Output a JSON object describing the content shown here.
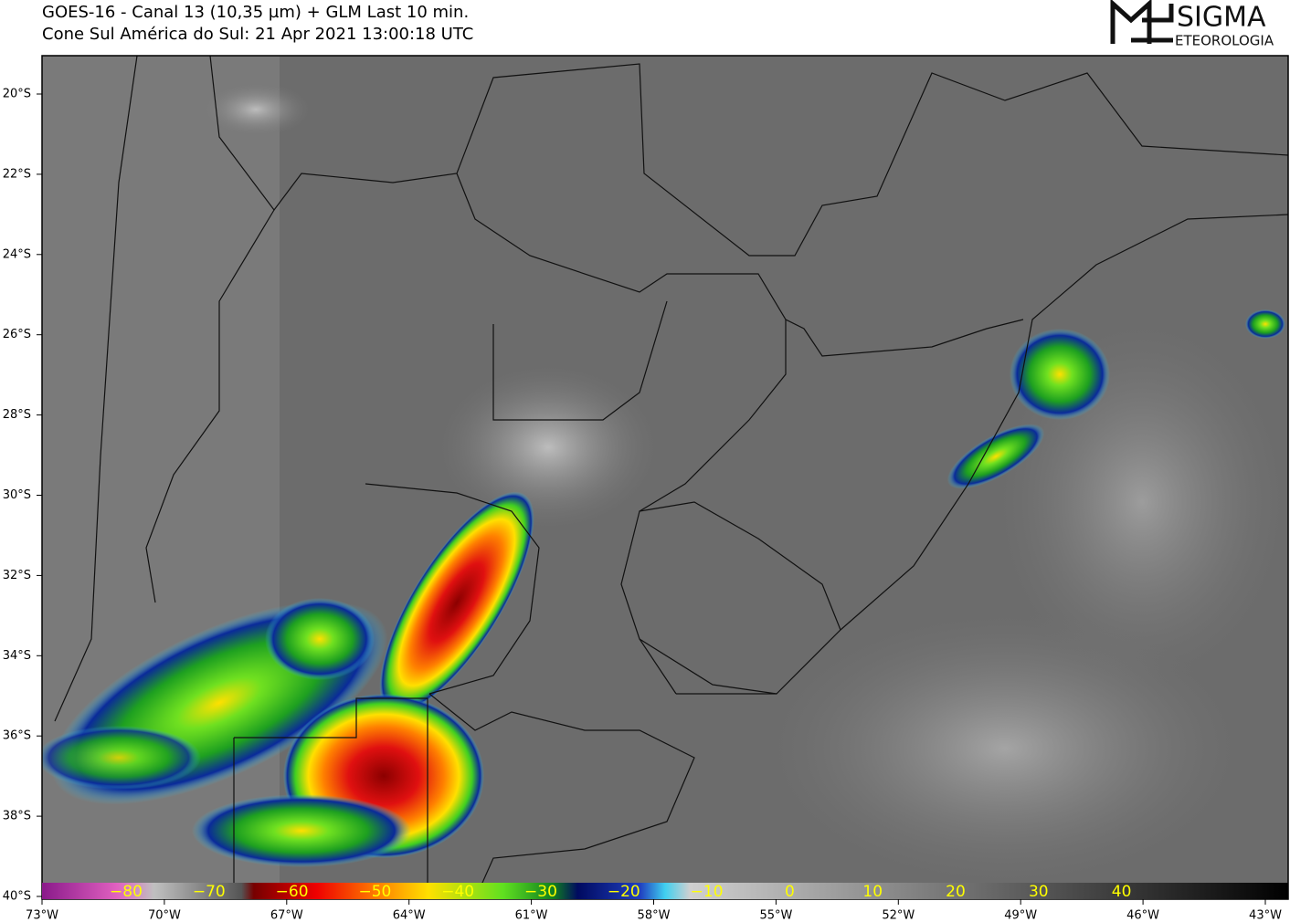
{
  "header": {
    "title": "GOES-16 - Canal 13 (10,35 µm) + GLM Last 10 min.",
    "subtitle": "Cone Sul América do Sul:  21 Apr 2021 13:00:18 UTC"
  },
  "logo": {
    "name": "SIGMA",
    "tagline": "ETEOROLOGIA"
  },
  "map": {
    "lat_labels": [
      "20°S",
      "22°S",
      "24°S",
      "26°S",
      "28°S",
      "30°S",
      "32°S",
      "34°S",
      "36°S",
      "38°S",
      "40°S"
    ],
    "lon_labels": [
      "73°W",
      "70°W",
      "67°W",
      "64°W",
      "61°W",
      "58°W",
      "55°W",
      "52°W",
      "49°W",
      "46°W",
      "43°W"
    ]
  },
  "colorbar": {
    "labels": [
      "−80",
      "−70",
      "−60",
      "−50",
      "−40",
      "−30",
      "−20",
      "−10",
      "0",
      "10",
      "20",
      "30",
      "40"
    ]
  }
}
